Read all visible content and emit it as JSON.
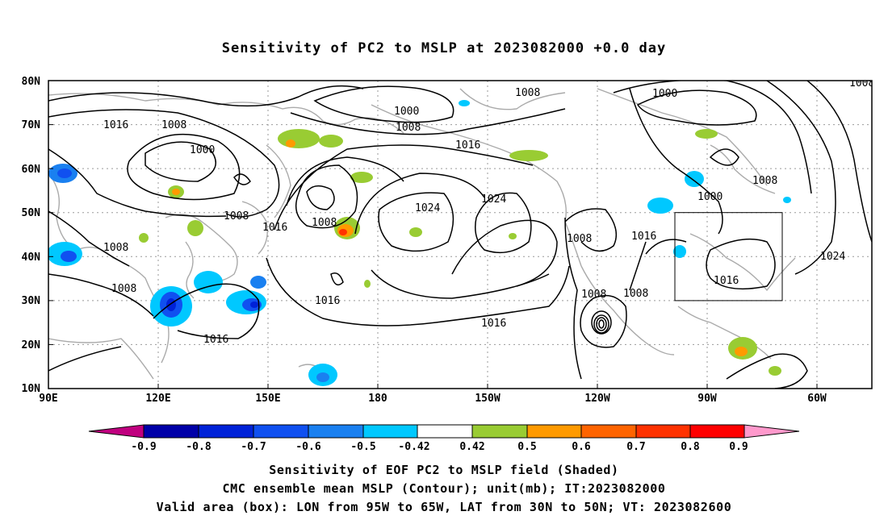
{
  "title": "Sensitivity of PC2 to MSLP at 2023082000 +0.0 day",
  "lat_labels": [
    "80N",
    "70N",
    "60N",
    "50N",
    "40N",
    "30N",
    "20N",
    "10N"
  ],
  "lon_labels": [
    "90E",
    "120E",
    "150E",
    "180",
    "150W",
    "120W",
    "90W",
    "60W"
  ],
  "contour_labels": [
    {
      "text": "1008",
      "id": "c1"
    },
    {
      "text": "1000",
      "id": "c2"
    },
    {
      "text": "1008",
      "id": "c3"
    },
    {
      "text": "1016",
      "id": "c4"
    },
    {
      "text": "1008",
      "id": "c5"
    },
    {
      "text": "1000",
      "id": "c6"
    },
    {
      "text": "1016",
      "id": "c7"
    },
    {
      "text": "1008",
      "id": "c8"
    },
    {
      "text": "1008",
      "id": "c9"
    },
    {
      "text": "1008",
      "id": "c10"
    },
    {
      "text": "1016",
      "id": "c11"
    },
    {
      "text": "1024",
      "id": "c12"
    },
    {
      "text": "1024",
      "id": "c13"
    },
    {
      "text": "1016",
      "id": "c14"
    },
    {
      "text": "1008",
      "id": "c15"
    },
    {
      "text": "1016",
      "id": "c16"
    },
    {
      "text": "1016",
      "id": "c17"
    },
    {
      "text": "1008",
      "id": "c18"
    },
    {
      "text": "1016",
      "id": "c19"
    },
    {
      "text": "1008",
      "id": "c20"
    },
    {
      "text": "1008",
      "id": "c21"
    },
    {
      "text": "1000",
      "id": "c22"
    },
    {
      "text": "1008",
      "id": "c23"
    },
    {
      "text": "1000",
      "id": "c24"
    },
    {
      "text": "1024",
      "id": "c25"
    },
    {
      "text": "1016",
      "id": "c26"
    },
    {
      "text": "1008",
      "id": "c27"
    },
    {
      "text": "1016",
      "id": "c28"
    },
    {
      "text": "102",
      "id": "c29"
    }
  ],
  "colorbar": {
    "labels": [
      "-0.9",
      "-0.8",
      "-0.7",
      "-0.6",
      "-0.5",
      "-0.42",
      "0.42",
      "0.5",
      "0.6",
      "0.7",
      "0.8",
      "0.9"
    ],
    "colors": [
      "#c0007f",
      "#0000a8",
      "#0022d8",
      "#1050f0",
      "#1a80f0",
      "#00c8ff",
      "#ffffff",
      "#99cc33",
      "#ff9a00",
      "#ff6400",
      "#ff3200",
      "#ff0000",
      "#ff99cc"
    ]
  },
  "valid_area": {
    "lon_from": "95W",
    "lon_to": "65W",
    "lat_from": "30N",
    "lat_to": "50N"
  },
  "captions": {
    "line1": "Sensitivity of EOF PC2 to MSLP field (Shaded)",
    "line2": "CMC ensemble mean MSLP (Contour); unit(mb); IT:2023082000",
    "line3": "Valid area (box): LON from 95W to 65W, LAT from 30N to 50N; VT: 2023082600"
  }
}
